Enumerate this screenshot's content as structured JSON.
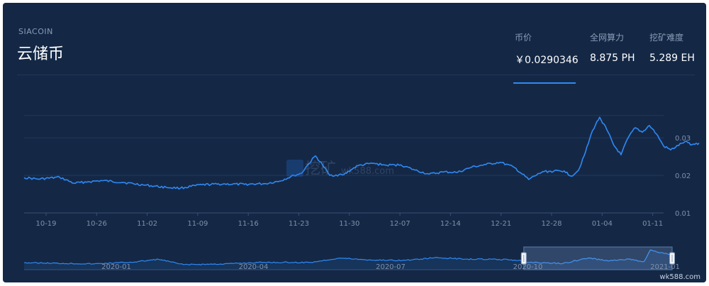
{
  "header": {
    "symbol": "SIACOIN",
    "name": "云储币"
  },
  "stats": {
    "price_label": "币价",
    "price_value": "￥0.0290346",
    "hashrate_label": "全网算力",
    "hashrate_value": "8.875 PH",
    "difficulty_label": "挖矿难度",
    "difficulty_value": "5.289 EH"
  },
  "watermark": {
    "text": "挖矿",
    "site": "wk588.com",
    "footer": "wk588.com"
  },
  "colors": {
    "background": "#142846",
    "line": "#2f89f4",
    "grid": "#22385b",
    "axis_text": "#7f8fa8"
  },
  "chart_data": {
    "type": "line",
    "title": "",
    "xlabel": "",
    "ylabel": "",
    "x_ticks": [
      "10-19",
      "10-26",
      "11-02",
      "11-09",
      "11-16",
      "11-23",
      "11-30",
      "12-07",
      "12-14",
      "12-21",
      "12-28",
      "01-04",
      "01-11"
    ],
    "y_ticks": [
      "0.01",
      "0.02",
      "0.03"
    ],
    "ylim": [
      0.01,
      0.0395
    ],
    "x_range": [
      "2020-10-16",
      "2021-01-14"
    ],
    "grid": true,
    "series": [
      {
        "points": [
          [
            "2020-10-16",
            0.0194
          ],
          [
            "2020-10-18",
            0.019
          ],
          [
            "2020-10-21",
            0.0195
          ],
          [
            "2020-10-23",
            0.0179
          ],
          [
            "2020-10-25",
            0.0183
          ],
          [
            "2020-10-27",
            0.0186
          ],
          [
            "2020-10-30",
            0.0181
          ],
          [
            "2020-11-02",
            0.0174
          ],
          [
            "2020-11-05",
            0.0168
          ],
          [
            "2020-11-07",
            0.0166
          ],
          [
            "2020-11-10",
            0.0175
          ],
          [
            "2020-11-13",
            0.0177
          ],
          [
            "2020-11-16",
            0.0176
          ],
          [
            "2020-11-19",
            0.0178
          ],
          [
            "2020-11-21",
            0.0185
          ],
          [
            "2020-11-23",
            0.02
          ],
          [
            "2020-11-24",
            0.0205
          ],
          [
            "2020-11-25",
            0.023
          ],
          [
            "2020-11-26",
            0.0252
          ],
          [
            "2020-11-27",
            0.0228
          ],
          [
            "2020-11-28",
            0.02
          ],
          [
            "2020-11-30",
            0.0202
          ],
          [
            "2020-12-01",
            0.0215
          ],
          [
            "2020-12-02",
            0.0226
          ],
          [
            "2020-12-04",
            0.0232
          ],
          [
            "2020-12-06",
            0.0227
          ],
          [
            "2020-12-08",
            0.0228
          ],
          [
            "2020-12-10",
            0.0214
          ],
          [
            "2020-12-12",
            0.0203
          ],
          [
            "2020-12-14",
            0.0209
          ],
          [
            "2020-12-16",
            0.0208
          ],
          [
            "2020-12-18",
            0.0222
          ],
          [
            "2020-12-20",
            0.0229
          ],
          [
            "2020-12-22",
            0.0235
          ],
          [
            "2020-12-24",
            0.0221
          ],
          [
            "2020-12-26",
            0.0189
          ],
          [
            "2020-12-28",
            0.021
          ],
          [
            "2020-12-31",
            0.0212
          ],
          [
            "2021-01-01",
            0.0198
          ],
          [
            "2021-01-02",
            0.0213
          ],
          [
            "2021-01-03",
            0.0262
          ],
          [
            "2021-01-04",
            0.032
          ],
          [
            "2021-01-05",
            0.0355
          ],
          [
            "2021-01-06",
            0.0322
          ],
          [
            "2021-01-07",
            0.028
          ],
          [
            "2021-01-08",
            0.0255
          ],
          [
            "2021-01-09",
            0.03
          ],
          [
            "2021-01-10",
            0.0327
          ],
          [
            "2021-01-11",
            0.0315
          ],
          [
            "2021-01-12",
            0.0333
          ],
          [
            "2021-01-13",
            0.031
          ],
          [
            "2021-01-14",
            0.0278
          ],
          [
            "2021-01-15",
            0.0268
          ],
          [
            "2021-01-17",
            0.029
          ],
          [
            "2021-01-18",
            0.0282
          ],
          [
            "2021-01-19",
            0.0286
          ]
        ]
      }
    ],
    "navigator": {
      "x_ticks": [
        "2020-01",
        "2020-04",
        "2020-07",
        "2020-10",
        "2021-01"
      ],
      "selected_range": [
        "2020-10-16",
        "2021-01-19"
      ],
      "points": [
        [
          "2019-12-01",
          0.0185
        ],
        [
          "2020-01-15",
          0.017
        ],
        [
          "2020-02-10",
          0.0195
        ],
        [
          "2020-02-25",
          0.023
        ],
        [
          "2020-03-12",
          0.016
        ],
        [
          "2020-04-05",
          0.0168
        ],
        [
          "2020-05-01",
          0.019
        ],
        [
          "2020-06-01",
          0.0188
        ],
        [
          "2020-06-20",
          0.0245
        ],
        [
          "2020-07-10",
          0.022
        ],
        [
          "2020-08-01",
          0.0215
        ],
        [
          "2020-08-20",
          0.025
        ],
        [
          "2020-09-10",
          0.0232
        ],
        [
          "2020-09-25",
          0.023
        ],
        [
          "2020-10-10",
          0.022
        ],
        [
          "2020-10-20",
          0.019
        ],
        [
          "2020-11-10",
          0.0175
        ],
        [
          "2020-11-26",
          0.0245
        ],
        [
          "2020-12-10",
          0.021
        ],
        [
          "2020-12-22",
          0.0232
        ],
        [
          "2021-01-01",
          0.02
        ],
        [
          "2021-01-05",
          0.035
        ],
        [
          "2021-01-10",
          0.032
        ],
        [
          "2021-01-19",
          0.0286
        ]
      ]
    }
  }
}
